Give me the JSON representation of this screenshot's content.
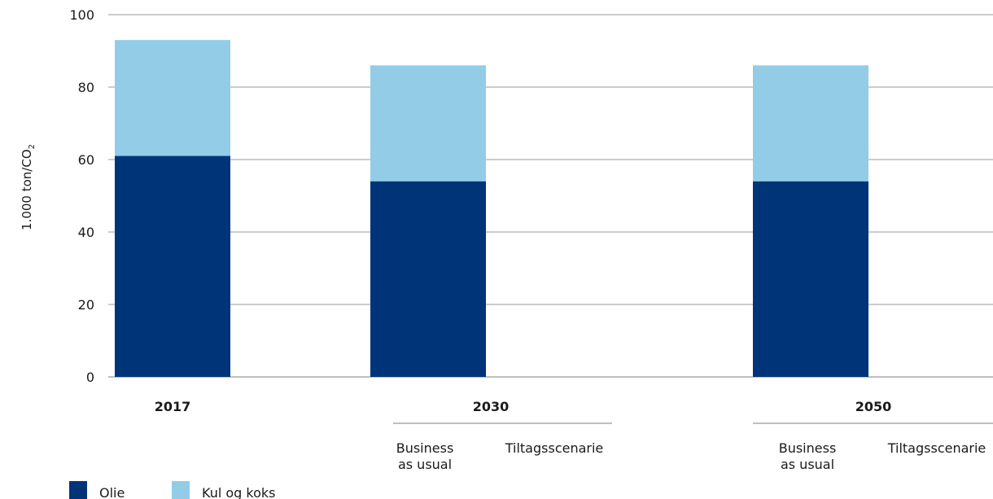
{
  "chart_data": {
    "type": "bar",
    "stacked": true,
    "ylabel_main": "1.000 ton/CO",
    "ylabel_sub": "2",
    "ylim": [
      0,
      100
    ],
    "yticks": [
      0,
      20,
      40,
      60,
      80,
      100
    ],
    "grid": true,
    "legend_position": "bottom-left",
    "categories": [
      {
        "group": "2017",
        "label": ""
      },
      {
        "group": "2030",
        "label": "Business as usual"
      },
      {
        "group": "2030",
        "label": "Tiltagsscenarie"
      },
      {
        "group": "2050",
        "label": "Business as usual"
      },
      {
        "group": "2050",
        "label": "Tiltagsscenarie"
      }
    ],
    "groups": [
      "2017",
      "2030",
      "2050"
    ],
    "sub_labels": {
      "bau_line1": "Business",
      "bau_line2": "as usual",
      "tilt": "Tiltagsscenarie"
    },
    "series": [
      {
        "name": "Olie",
        "color": "#003478",
        "values": [
          61,
          54,
          0,
          54,
          0
        ]
      },
      {
        "name": "Kul og koks",
        "color": "#93cce6",
        "values": [
          32,
          32,
          0,
          32,
          0
        ]
      }
    ]
  }
}
